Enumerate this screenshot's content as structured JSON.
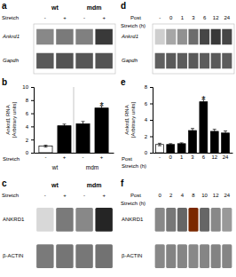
{
  "chart_data": [
    {
      "type": "gel",
      "title": "a",
      "categories": [
        "-",
        "+",
        "-",
        "+"
      ],
      "groups": [
        "wt",
        "mdm"
      ],
      "xlabel": "Stretch",
      "rows": [
        "Ankrd1",
        "Gapdh"
      ],
      "cells": [
        [
          0.55,
          0.6,
          0.58,
          0.82
        ],
        [
          0.72,
          0.74,
          0.73,
          0.74
        ]
      ]
    },
    {
      "type": "bar",
      "title": "b",
      "categories": [
        "-",
        "+",
        "-",
        "+"
      ],
      "groups": [
        "wt",
        "mdm"
      ],
      "xlabel": "Stretch",
      "values": [
        1.0,
        4.1,
        4.4,
        6.8
      ],
      "errors": [
        0.15,
        0.25,
        0.35,
        0.35
      ],
      "colors": [
        "white",
        "black",
        "black",
        "black"
      ],
      "ylabel": "Ankrd1 RNA\n[Arbitrary units]",
      "ylim": [
        0,
        10
      ],
      "yticks": [
        0,
        2,
        4,
        6,
        8,
        10
      ],
      "annotations": [
        {
          "text": "*",
          "index": 3
        }
      ]
    },
    {
      "type": "blot",
      "title": "c",
      "categories": [
        "-",
        "+",
        "-",
        "+"
      ],
      "groups": [
        "wt",
        "mdm"
      ],
      "xlabel": "Stretch",
      "rows": [
        "ANKRD1",
        "β-ACTIN"
      ],
      "cells": [
        [
          0.25,
          0.6,
          0.55,
          0.88
        ],
        [
          0.6,
          0.62,
          0.61,
          0.63
        ]
      ]
    },
    {
      "type": "gel",
      "title": "d",
      "categories": [
        "-",
        "0",
        "1",
        "3",
        "6",
        "12",
        "24"
      ],
      "xlabel": "Post\nStretch (h)",
      "rows": [
        "Ankrd1",
        "Gapdh"
      ],
      "cells": [
        [
          0.3,
          0.45,
          0.52,
          0.65,
          0.78,
          0.82,
          0.78
        ],
        [
          0.7,
          0.72,
          0.71,
          0.72,
          0.71,
          0.72,
          0.71
        ]
      ]
    },
    {
      "type": "bar",
      "title": "e",
      "categories": [
        "-",
        "0",
        "1",
        "3",
        "6",
        "12",
        "24"
      ],
      "xlabel": "Post\nStretch (h)",
      "values": [
        1.0,
        1.0,
        1.1,
        2.7,
        6.2,
        2.6,
        2.4
      ],
      "errors": [
        0.15,
        0.1,
        0.1,
        0.25,
        0.3,
        0.25,
        0.25
      ],
      "colors": [
        "white",
        "black",
        "black",
        "black",
        "black",
        "black",
        "black"
      ],
      "ylabel": "Ankrd1 RNA\n[Arbitrary units]",
      "ylim": [
        0,
        8
      ],
      "yticks": [
        0,
        2,
        4,
        6,
        8
      ],
      "annotations": [
        {
          "text": "*",
          "index": 4
        }
      ]
    },
    {
      "type": "blot",
      "title": "f",
      "categories": [
        "0",
        "2",
        "4",
        "8",
        "10",
        "12",
        "24"
      ],
      "xlabel": "Post\nStretch (h)",
      "rows": [
        "ANKRD1",
        "β-ACTIN"
      ],
      "cells": [
        [
          0.3,
          0.42,
          0.55,
          0.92,
          0.55,
          0.4,
          0.35
        ],
        [
          0.55,
          0.57,
          0.56,
          0.55,
          0.56,
          0.57,
          0.56
        ]
      ],
      "colors": [
        "#888888",
        "#777777",
        "#666666",
        "#7a2800",
        "#666666",
        "#888888",
        "#999999"
      ]
    }
  ]
}
